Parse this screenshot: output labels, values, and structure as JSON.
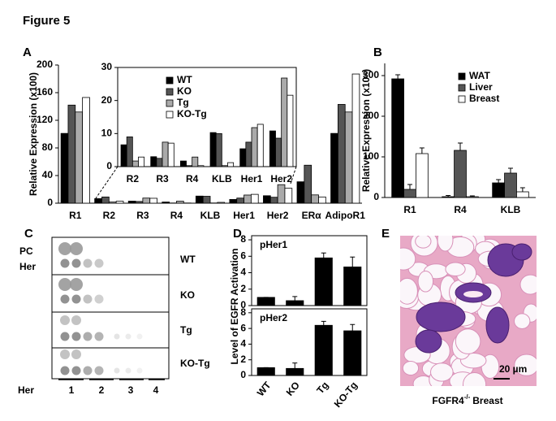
{
  "figure_title": "Figure 5",
  "chart_data": [
    {
      "type": "bar",
      "panel": "A",
      "ylabel": "Relative Expression (x100)",
      "categories": [
        "R1",
        "R2",
        "R3",
        "R4",
        "KLB",
        "Her1",
        "Her2",
        "ERα",
        "AdipoR1"
      ],
      "series": [
        {
          "name": "WT",
          "color": "#000000",
          "values": [
            101,
            6.6,
            3,
            1.7,
            10.3,
            5.4,
            10.8,
            31,
            101
          ]
        },
        {
          "name": "KO",
          "color": "#555555",
          "values": [
            142,
            9,
            2.5,
            0.3,
            10,
            7.4,
            8.6,
            55,
            143
          ]
        },
        {
          "name": "Tg",
          "color": "#aaaaaa",
          "values": [
            132,
            1.7,
            7.4,
            2.9,
            0.3,
            11.8,
            26.8,
            12,
            132
          ]
        },
        {
          "name": "KO-Tg",
          "color": "#ffffff",
          "values": [
            153,
            2.9,
            7.1,
            0.3,
            1.2,
            12.8,
            21.6,
            9,
            187
          ]
        }
      ],
      "ylim": [
        0,
        200
      ],
      "yticks": [
        0,
        40,
        80,
        120,
        160,
        200
      ]
    },
    {
      "type": "bar",
      "categories": [
        "R2",
        "R3",
        "R4",
        "KLB",
        "Her1",
        "Her2"
      ],
      "series": [
        {
          "name": "WT",
          "color": "#000000",
          "values": [
            6.6,
            3,
            1.7,
            10.3,
            5.4,
            10.8
          ]
        },
        {
          "name": "KO",
          "color": "#555555",
          "values": [
            9,
            2.5,
            0.3,
            10,
            7.4,
            8.6
          ]
        },
        {
          "name": "Tg",
          "color": "#aaaaaa",
          "values": [
            1.7,
            7.4,
            2.9,
            0.3,
            11.8,
            26.8
          ]
        },
        {
          "name": "KO-Tg",
          "color": "#ffffff",
          "values": [
            2.9,
            7.1,
            0.3,
            1.2,
            12.8,
            21.6
          ]
        }
      ],
      "ylim": [
        0,
        30
      ],
      "yticks": [
        0,
        10,
        20,
        30
      ],
      "legend": "upper left"
    },
    {
      "type": "bar",
      "panel": "B",
      "ylabel": "Relative Expression (x10⁴)",
      "categories": [
        "R1",
        "R4",
        "KLB"
      ],
      "series": [
        {
          "name": "WAT",
          "color": "#000000",
          "values": [
            292,
            2,
            36
          ],
          "errors": [
            10,
            3,
            8
          ]
        },
        {
          "name": "Liver",
          "color": "#555555",
          "values": [
            20,
            116,
            60
          ],
          "errors": [
            12,
            18,
            12
          ]
        },
        {
          "name": "Breast",
          "color": "#ffffff",
          "values": [
            108,
            2,
            14
          ],
          "errors": [
            14,
            2,
            10
          ]
        }
      ],
      "ylim": [
        0,
        330
      ],
      "yticks": [
        0,
        100,
        200,
        300
      ],
      "legend": "upper right"
    },
    {
      "type": "bar",
      "panel": "D",
      "ylabel": "Level of EGFR Activation",
      "annotation": "pHer1",
      "values": [
        1.0,
        0.6,
        5.8,
        4.7
      ],
      "errors": [
        0,
        0.5,
        0.6,
        1.2
      ],
      "color": "#000000",
      "ylim": [
        0,
        8.5
      ],
      "yticks": [
        0,
        2,
        4,
        6,
        8
      ]
    },
    {
      "type": "bar",
      "annotation": "pHer2",
      "categories": [
        "WT",
        "KO",
        "Tg",
        "KO-Tg"
      ],
      "values": [
        1.0,
        0.9,
        6.4,
        5.7
      ],
      "errors": [
        0,
        0.7,
        0.5,
        0.8
      ],
      "color": "#000000",
      "ylim": [
        0,
        8.5
      ],
      "yticks": [
        0,
        2,
        4,
        6,
        8
      ]
    }
  ],
  "panel_c": {
    "panel": "C",
    "row_labels": [
      "PC",
      "Her"
    ],
    "samples": [
      "WT",
      "KO",
      "Tg",
      "KO-Tg"
    ],
    "axis_label": "Her",
    "lanes": [
      "1",
      "2",
      "3",
      "4"
    ]
  },
  "panel_e": {
    "panel": "E",
    "scale_bar": "20 µm",
    "caption_gene": "FGFR4",
    "caption_genotype": "-/-",
    "caption_tissue": "Breast"
  }
}
